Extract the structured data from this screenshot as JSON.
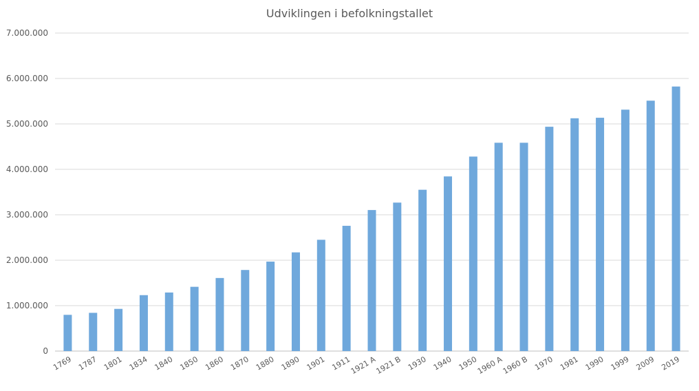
{
  "chart_data": {
    "type": "bar",
    "title": "Udviklingen i befolkningstallet",
    "xlabel": "",
    "ylabel": "",
    "ylim": [
      0,
      7000000
    ],
    "yticks": [
      0,
      1000000,
      2000000,
      3000000,
      4000000,
      5000000,
      6000000,
      7000000
    ],
    "ytick_labels": [
      "0",
      "1.000.000",
      "2.000.000",
      "3.000.000",
      "4.000.000",
      "5.000.000",
      "6.000.000",
      "7.000.000"
    ],
    "grid": true,
    "legend": "none",
    "bar_color": "#6fa8dc",
    "categories": [
      "1769",
      "1787",
      "1801",
      "1834",
      "1840",
      "1850",
      "1860",
      "1870",
      "1880",
      "1890",
      "1901",
      "1911",
      "1921 A",
      "1921 B",
      "1930",
      "1940",
      "1950",
      "1960 A",
      "1960 B",
      "1970",
      "1981",
      "1990",
      "1999",
      "2009",
      "2019"
    ],
    "values": [
      797584,
      841806,
      929001,
      1230964,
      1289075,
      1414648,
      1608362,
      1784741,
      1969039,
      2172380,
      2449540,
      2757076,
      3104221,
      3267831,
      3550656,
      3844312,
      4281275,
      4585256,
      4585256,
      4937579,
      5123989,
      5135409,
      5313577,
      5511451,
      5822763
    ]
  }
}
